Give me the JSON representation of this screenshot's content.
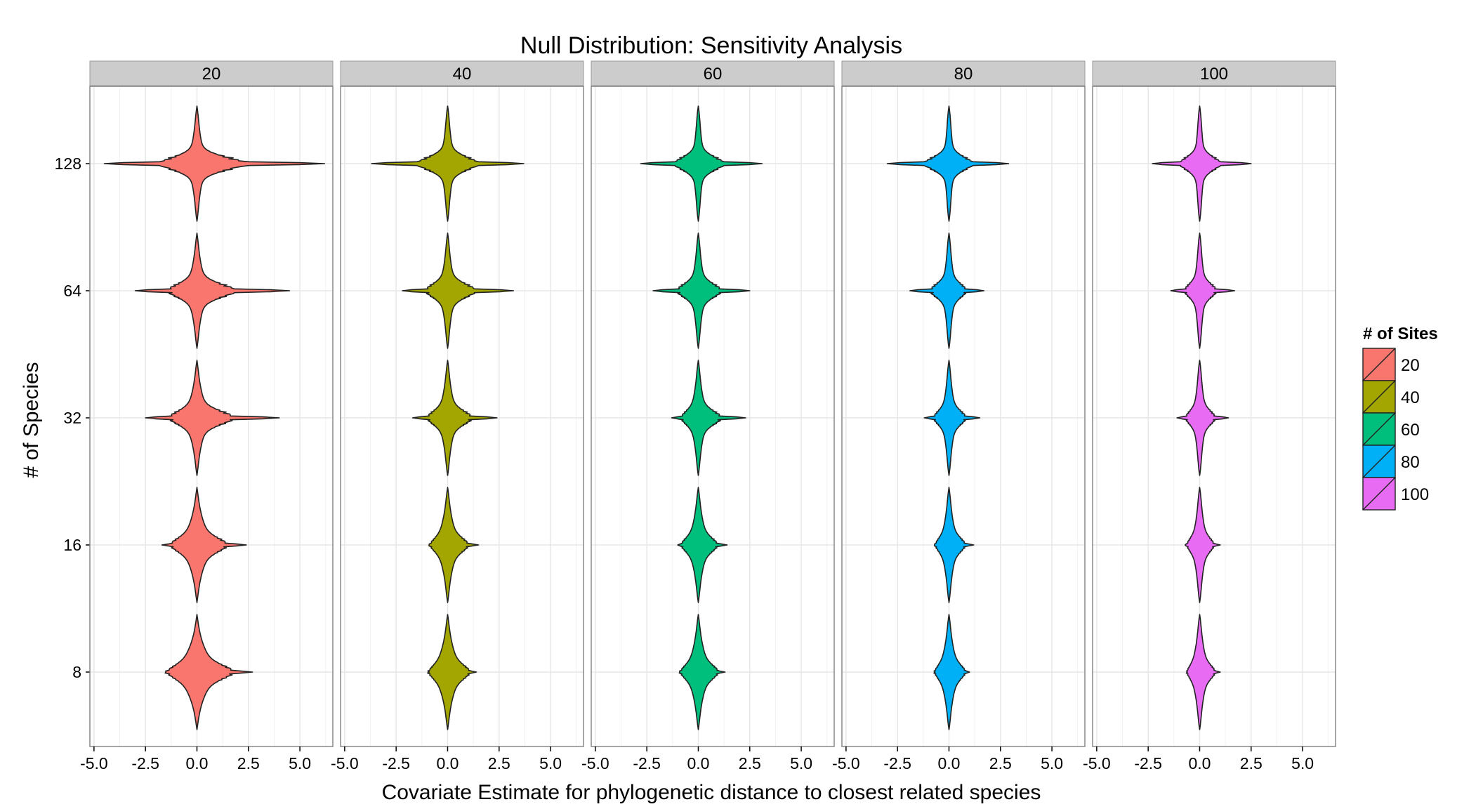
{
  "chart_data": {
    "type": "violin",
    "title": "Null Distribution: Sensitivity Analysis",
    "xlabel": "Covariate Estimate for phylogenetic distance to closest related species",
    "ylabel": "# of Species",
    "facet_labels": [
      "20",
      "40",
      "60",
      "80",
      "100"
    ],
    "x_ticks": [
      "-5.0",
      "-2.5",
      "0.0",
      "2.5",
      "5.0"
    ],
    "x_tick_values": [
      -5.0,
      -2.5,
      0.0,
      2.5,
      5.0
    ],
    "xlim": [
      -5.2,
      6.6
    ],
    "y_categories": [
      "8",
      "16",
      "32",
      "64",
      "128"
    ],
    "grid": true,
    "legend": {
      "title": "# of Sites",
      "position": "right",
      "items": [
        {
          "label": "20",
          "color": "#F8766D"
        },
        {
          "label": "40",
          "color": "#A3A500"
        },
        {
          "label": "60",
          "color": "#00BF7D"
        },
        {
          "label": "80",
          "color": "#00B0F6"
        },
        {
          "label": "100",
          "color": "#E76BF3"
        }
      ]
    },
    "series": [
      {
        "facet": "20",
        "color": "#F8766D",
        "violins": [
          {
            "species": "128",
            "min": -4.5,
            "max": 6.2,
            "core_width": 0.45
          },
          {
            "species": "64",
            "min": -3.0,
            "max": 4.5,
            "core_width": 0.55
          },
          {
            "species": "32",
            "min": -2.5,
            "max": 4.0,
            "core_width": 0.65
          },
          {
            "species": "16",
            "min": -1.7,
            "max": 2.4,
            "core_width": 0.85
          },
          {
            "species": "8",
            "min": -1.5,
            "max": 2.7,
            "core_width": 1.1
          }
        ]
      },
      {
        "facet": "40",
        "color": "#A3A500",
        "violins": [
          {
            "species": "128",
            "min": -3.7,
            "max": 3.7,
            "core_width": 0.35
          },
          {
            "species": "64",
            "min": -2.2,
            "max": 3.2,
            "core_width": 0.42
          },
          {
            "species": "32",
            "min": -1.7,
            "max": 2.4,
            "core_width": 0.5
          },
          {
            "species": "16",
            "min": -0.9,
            "max": 1.5,
            "core_width": 0.6
          },
          {
            "species": "8",
            "min": -0.8,
            "max": 1.4,
            "core_width": 0.72
          }
        ]
      },
      {
        "facet": "60",
        "color": "#00BF7D",
        "violins": [
          {
            "species": "128",
            "min": -2.8,
            "max": 3.1,
            "core_width": 0.3
          },
          {
            "species": "64",
            "min": -2.2,
            "max": 2.5,
            "core_width": 0.38
          },
          {
            "species": "32",
            "min": -1.3,
            "max": 2.3,
            "core_width": 0.45
          },
          {
            "species": "16",
            "min": -1.0,
            "max": 1.4,
            "core_width": 0.55
          },
          {
            "species": "8",
            "min": -0.9,
            "max": 1.3,
            "core_width": 0.62
          }
        ]
      },
      {
        "facet": "80",
        "color": "#00B0F6",
        "violins": [
          {
            "species": "128",
            "min": -3.0,
            "max": 2.9,
            "core_width": 0.26
          },
          {
            "species": "64",
            "min": -1.9,
            "max": 1.7,
            "core_width": 0.33
          },
          {
            "species": "32",
            "min": -1.2,
            "max": 1.5,
            "core_width": 0.38
          },
          {
            "species": "16",
            "min": -0.7,
            "max": 1.2,
            "core_width": 0.45
          },
          {
            "species": "8",
            "min": -0.6,
            "max": 1.0,
            "core_width": 0.52
          }
        ]
      },
      {
        "facet": "100",
        "color": "#E76BF3",
        "violins": [
          {
            "species": "128",
            "min": -2.3,
            "max": 2.5,
            "core_width": 0.25
          },
          {
            "species": "64",
            "min": -1.4,
            "max": 1.7,
            "core_width": 0.3
          },
          {
            "species": "32",
            "min": -1.1,
            "max": 1.4,
            "core_width": 0.34
          },
          {
            "species": "16",
            "min": -0.7,
            "max": 1.0,
            "core_width": 0.4
          },
          {
            "species": "8",
            "min": -0.5,
            "max": 1.0,
            "core_width": 0.46
          }
        ]
      }
    ]
  }
}
